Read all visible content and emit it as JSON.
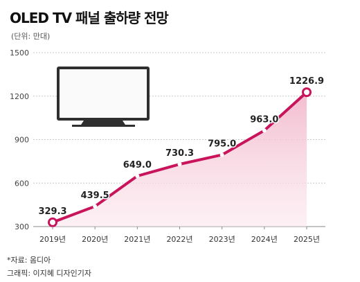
{
  "title": "OLED TV 패널 출하량 전망",
  "unit_label": "(단위: 만대)",
  "source": "*자료: 옴디아",
  "credit": "그래픽: 이지혜 디자인기자",
  "colors": {
    "line": "#c8145a",
    "area": "#f4c7d8",
    "grid": "#c8c8c8"
  },
  "icons": [
    "tv-icon"
  ],
  "chart_data": {
    "type": "area",
    "title": "OLED TV 패널 출하량 전망",
    "ylabel": "(단위: 만대)",
    "xlabel": "",
    "categories": [
      "2019년",
      "2020년",
      "2021년",
      "2022년",
      "2023년",
      "2024년",
      "2025년"
    ],
    "values": [
      329.3,
      439.5,
      649.0,
      730.3,
      795.0,
      963.0,
      1226.9
    ],
    "value_labels": [
      "329.3",
      "439.5",
      "649.0",
      "730.3",
      "795.0",
      "963.0",
      "1226.9"
    ],
    "ylim": [
      300,
      1500
    ],
    "yticks": [
      300,
      600,
      900,
      1200,
      1500
    ],
    "grid": true,
    "legend": "none"
  }
}
